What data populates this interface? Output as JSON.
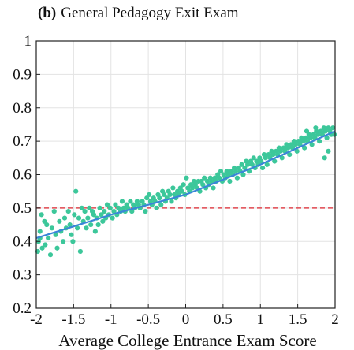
{
  "chart_data": {
    "type": "scatter",
    "title_tag": "(b)",
    "title": "General Pedagogy Exit Exam",
    "xlabel": "Average College Entrance Exam Score",
    "ylabel": "",
    "xlim": [
      -2,
      2
    ],
    "ylim": [
      0.2,
      1
    ],
    "xticks": [
      "-2",
      "-1.5",
      "-1",
      "-0.5",
      "0",
      "0.5",
      "1",
      "1.5",
      "2"
    ],
    "yticks": [
      "0.2",
      "0.3",
      "0.4",
      "0.5",
      "0.6",
      "0.7",
      "0.8",
      "0.9",
      "1"
    ],
    "grid": true,
    "reference_line": {
      "y": 0.5,
      "style": "dashed",
      "color": "#e0474f"
    },
    "colors": {
      "points": "#3cc79a",
      "fit": "#3a86d8"
    },
    "fit_line": {
      "x": [
        -2,
        -1,
        0,
        1,
        2
      ],
      "y": [
        0.41,
        0.48,
        0.54,
        0.63,
        0.73
      ]
    },
    "points": [
      [
        -1.98,
        0.37
      ],
      [
        -1.97,
        0.4
      ],
      [
        -1.95,
        0.43
      ],
      [
        -1.93,
        0.48
      ],
      [
        -1.92,
        0.38
      ],
      [
        -1.89,
        0.46
      ],
      [
        -1.86,
        0.45
      ],
      [
        -1.84,
        0.41
      ],
      [
        -1.81,
        0.36
      ],
      [
        -1.79,
        0.44
      ],
      [
        -1.76,
        0.49
      ],
      [
        -1.74,
        0.42
      ],
      [
        -1.72,
        0.38
      ],
      [
        -1.69,
        0.46
      ],
      [
        -1.67,
        0.43
      ],
      [
        -1.64,
        0.4
      ],
      [
        -1.62,
        0.47
      ],
      [
        -1.6,
        0.44
      ],
      [
        -1.57,
        0.49
      ],
      [
        -1.55,
        0.45
      ],
      [
        -1.53,
        0.42
      ],
      [
        -1.51,
        0.4
      ],
      [
        -1.49,
        0.48
      ],
      [
        -1.47,
        0.55
      ],
      [
        -1.45,
        0.44
      ],
      [
        -1.43,
        0.47
      ],
      [
        -1.41,
        0.37
      ],
      [
        -1.39,
        0.5
      ],
      [
        -1.37,
        0.46
      ],
      [
        -1.35,
        0.49
      ],
      [
        -1.33,
        0.44
      ],
      [
        -1.31,
        0.47
      ],
      [
        -1.29,
        0.5
      ],
      [
        -1.27,
        0.45
      ],
      [
        -1.25,
        0.49
      ],
      [
        -1.23,
        0.48
      ],
      [
        -1.21,
        0.43
      ],
      [
        -1.19,
        0.47
      ],
      [
        -1.17,
        0.45
      ],
      [
        -1.15,
        0.5
      ],
      [
        -1.13,
        0.48
      ],
      [
        -1.11,
        0.46
      ],
      [
        -1.09,
        0.49
      ],
      [
        -1.07,
        0.47
      ],
      [
        -1.05,
        0.51
      ],
      [
        -1.03,
        0.48
      ],
      [
        -1.01,
        0.5
      ],
      [
        -0.98,
        0.47
      ],
      [
        -0.96,
        0.49
      ],
      [
        -0.94,
        0.51
      ],
      [
        -0.92,
        0.48
      ],
      [
        -0.9,
        0.5
      ],
      [
        -0.87,
        0.49
      ],
      [
        -0.85,
        0.52
      ],
      [
        -0.83,
        0.5
      ],
      [
        -0.81,
        0.49
      ],
      [
        -0.79,
        0.51
      ],
      [
        -0.77,
        0.5
      ],
      [
        -0.74,
        0.52
      ],
      [
        -0.72,
        0.49
      ],
      [
        -0.7,
        0.51
      ],
      [
        -0.68,
        0.5
      ],
      [
        -0.65,
        0.52
      ],
      [
        -0.63,
        0.51
      ],
      [
        -0.61,
        0.5
      ],
      [
        -0.58,
        0.52
      ],
      [
        -0.56,
        0.51
      ],
      [
        -0.54,
        0.49
      ],
      [
        -0.52,
        0.53
      ],
      [
        -0.49,
        0.54
      ],
      [
        -0.47,
        0.52
      ],
      [
        -0.45,
        0.51
      ],
      [
        -0.43,
        0.53
      ],
      [
        -0.41,
        0.52
      ],
      [
        -0.39,
        0.5
      ],
      [
        -0.37,
        0.54
      ],
      [
        -0.35,
        0.53
      ],
      [
        -0.33,
        0.51
      ],
      [
        -0.31,
        0.55
      ],
      [
        -0.29,
        0.54
      ],
      [
        -0.27,
        0.52
      ],
      [
        -0.25,
        0.53
      ],
      [
        -0.23,
        0.55
      ],
      [
        -0.21,
        0.54
      ],
      [
        -0.19,
        0.52
      ],
      [
        -0.17,
        0.56
      ],
      [
        -0.15,
        0.54
      ],
      [
        -0.13,
        0.53
      ],
      [
        -0.11,
        0.55
      ],
      [
        -0.09,
        0.54
      ],
      [
        -0.07,
        0.56
      ],
      [
        -0.05,
        0.55
      ],
      [
        -0.03,
        0.57
      ],
      [
        -0.01,
        0.54
      ],
      [
        0.01,
        0.59
      ],
      [
        0.03,
        0.56
      ],
      [
        0.05,
        0.55
      ],
      [
        0.07,
        0.57
      ],
      [
        0.09,
        0.56
      ],
      [
        0.11,
        0.58
      ],
      [
        0.13,
        0.57
      ],
      [
        0.15,
        0.56
      ],
      [
        0.17,
        0.58
      ],
      [
        0.19,
        0.55
      ],
      [
        0.21,
        0.58
      ],
      [
        0.23,
        0.57
      ],
      [
        0.25,
        0.59
      ],
      [
        0.27,
        0.56
      ],
      [
        0.29,
        0.58
      ],
      [
        0.31,
        0.57
      ],
      [
        0.33,
        0.59
      ],
      [
        0.35,
        0.58
      ],
      [
        0.37,
        0.56
      ],
      [
        0.39,
        0.59
      ],
      [
        0.41,
        0.58
      ],
      [
        0.43,
        0.6
      ],
      [
        0.45,
        0.59
      ],
      [
        0.47,
        0.61
      ],
      [
        0.49,
        0.58
      ],
      [
        0.51,
        0.6
      ],
      [
        0.53,
        0.59
      ],
      [
        0.55,
        0.61
      ],
      [
        0.57,
        0.6
      ],
      [
        0.59,
        0.58
      ],
      [
        0.61,
        0.61
      ],
      [
        0.63,
        0.6
      ],
      [
        0.65,
        0.62
      ],
      [
        0.67,
        0.61
      ],
      [
        0.69,
        0.59
      ],
      [
        0.71,
        0.62
      ],
      [
        0.73,
        0.61
      ],
      [
        0.75,
        0.63
      ],
      [
        0.77,
        0.6
      ],
      [
        0.79,
        0.62
      ],
      [
        0.81,
        0.64
      ],
      [
        0.83,
        0.63
      ],
      [
        0.85,
        0.61
      ],
      [
        0.87,
        0.64
      ],
      [
        0.89,
        0.63
      ],
      [
        0.91,
        0.65
      ],
      [
        0.93,
        0.62
      ],
      [
        0.95,
        0.64
      ],
      [
        0.97,
        0.63
      ],
      [
        0.99,
        0.65
      ],
      [
        1.01,
        0.64
      ],
      [
        1.03,
        0.62
      ],
      [
        1.05,
        0.66
      ],
      [
        1.07,
        0.65
      ],
      [
        1.09,
        0.63
      ],
      [
        1.11,
        0.66
      ],
      [
        1.13,
        0.65
      ],
      [
        1.15,
        0.67
      ],
      [
        1.17,
        0.66
      ],
      [
        1.19,
        0.64
      ],
      [
        1.21,
        0.67
      ],
      [
        1.23,
        0.66
      ],
      [
        1.25,
        0.68
      ],
      [
        1.27,
        0.67
      ],
      [
        1.29,
        0.65
      ],
      [
        1.31,
        0.68
      ],
      [
        1.33,
        0.67
      ],
      [
        1.35,
        0.69
      ],
      [
        1.37,
        0.68
      ],
      [
        1.39,
        0.66
      ],
      [
        1.41,
        0.69
      ],
      [
        1.43,
        0.68
      ],
      [
        1.45,
        0.7
      ],
      [
        1.47,
        0.69
      ],
      [
        1.49,
        0.67
      ],
      [
        1.51,
        0.7
      ],
      [
        1.53,
        0.69
      ],
      [
        1.55,
        0.71
      ],
      [
        1.57,
        0.7
      ],
      [
        1.59,
        0.68
      ],
      [
        1.61,
        0.71
      ],
      [
        1.63,
        0.7
      ],
      [
        1.65,
        0.72
      ],
      [
        1.67,
        0.71
      ],
      [
        1.69,
        0.69
      ],
      [
        1.71,
        0.72
      ],
      [
        1.73,
        0.71
      ],
      [
        1.75,
        0.73
      ],
      [
        1.77,
        0.72
      ],
      [
        1.79,
        0.7
      ],
      [
        1.81,
        0.73
      ],
      [
        1.83,
        0.72
      ],
      [
        1.85,
        0.74
      ],
      [
        1.87,
        0.73
      ],
      [
        1.89,
        0.71
      ],
      [
        1.91,
        0.74
      ],
      [
        1.93,
        0.73
      ],
      [
        1.95,
        0.72
      ],
      [
        1.97,
        0.74
      ],
      [
        1.99,
        0.72
      ],
      [
        1.86,
        0.65
      ],
      [
        1.91,
        0.67
      ],
      [
        1.74,
        0.74
      ],
      [
        1.62,
        0.73
      ],
      [
        -1.95,
        0.41
      ],
      [
        -1.88,
        0.39
      ]
    ]
  }
}
